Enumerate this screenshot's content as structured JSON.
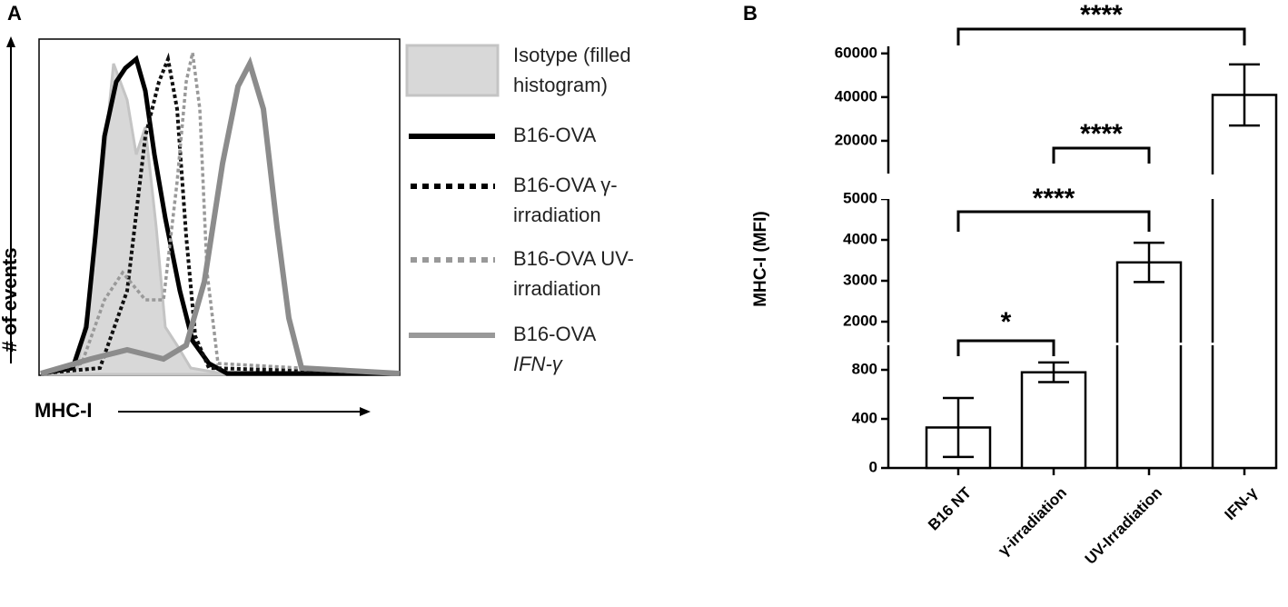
{
  "panel_labels": [
    "A",
    "B"
  ],
  "panel_a": {
    "y_label": "# of events",
    "x_label": "MHC-I",
    "legend": [
      {
        "lines": [
          "Isotype (filled",
          "histogram)"
        ]
      },
      {
        "lines": [
          "B16-OVA"
        ]
      },
      {
        "lines": [
          "B16-OVA γ-",
          "irradiation"
        ]
      },
      {
        "lines": [
          "B16-OVA UV-",
          "irradiation"
        ]
      },
      {
        "lines": [
          "B16-OVA",
          "IFN-γ"
        ]
      }
    ]
  },
  "chart_data": {
    "type": "bar",
    "y_label": "MHC-I (MFI)",
    "categories": [
      "B16 NT",
      "γ-irradiation",
      "UV-Irradiation",
      "IFN-γ"
    ],
    "values": [
      330,
      780,
      3450,
      41000
    ],
    "errors": [
      240,
      80,
      480,
      14000
    ],
    "color": "#ffffff",
    "y_segments": [
      {
        "ylim": [
          0,
          1000
        ],
        "yticks": [
          0,
          400,
          800
        ]
      },
      {
        "ylim": [
          1500,
          5000
        ],
        "yticks": [
          2000,
          3000,
          4000,
          5000
        ]
      },
      {
        "ylim": [
          5000,
          62000
        ],
        "yticks": [
          20000,
          40000,
          60000
        ]
      }
    ],
    "annotations": [
      "*",
      "****",
      "****",
      "****"
    ]
  }
}
